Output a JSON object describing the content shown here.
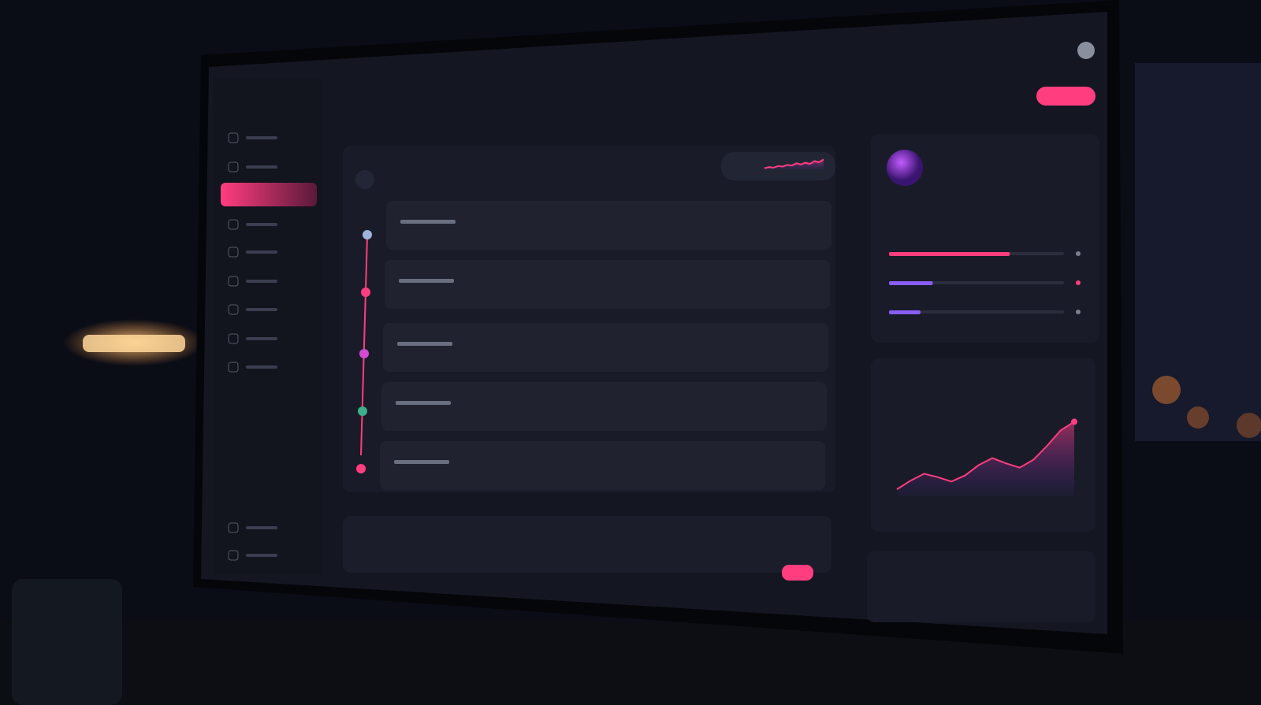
{
  "progress": {
    "max": 100,
    "bars": [
      {
        "color": "#ff3d7f",
        "value": 69
      },
      {
        "color": "#8a5cf6",
        "value": 25
      },
      {
        "color": "#8a5cf6",
        "value": 18
      }
    ]
  },
  "trend_chart": {
    "type": "area",
    "color": "#ff3d7f",
    "ylim": [
      0,
      100
    ],
    "values": [
      8,
      18,
      26,
      22,
      17,
      24,
      36,
      44,
      38,
      33,
      42,
      58,
      76,
      86
    ]
  },
  "sparkline": {
    "type": "area",
    "color": "#ff3d7f",
    "ylim": [
      0,
      100
    ],
    "values": [
      10,
      20,
      15,
      30,
      25,
      40,
      35,
      55,
      45,
      60,
      50,
      75,
      65,
      90
    ]
  }
}
